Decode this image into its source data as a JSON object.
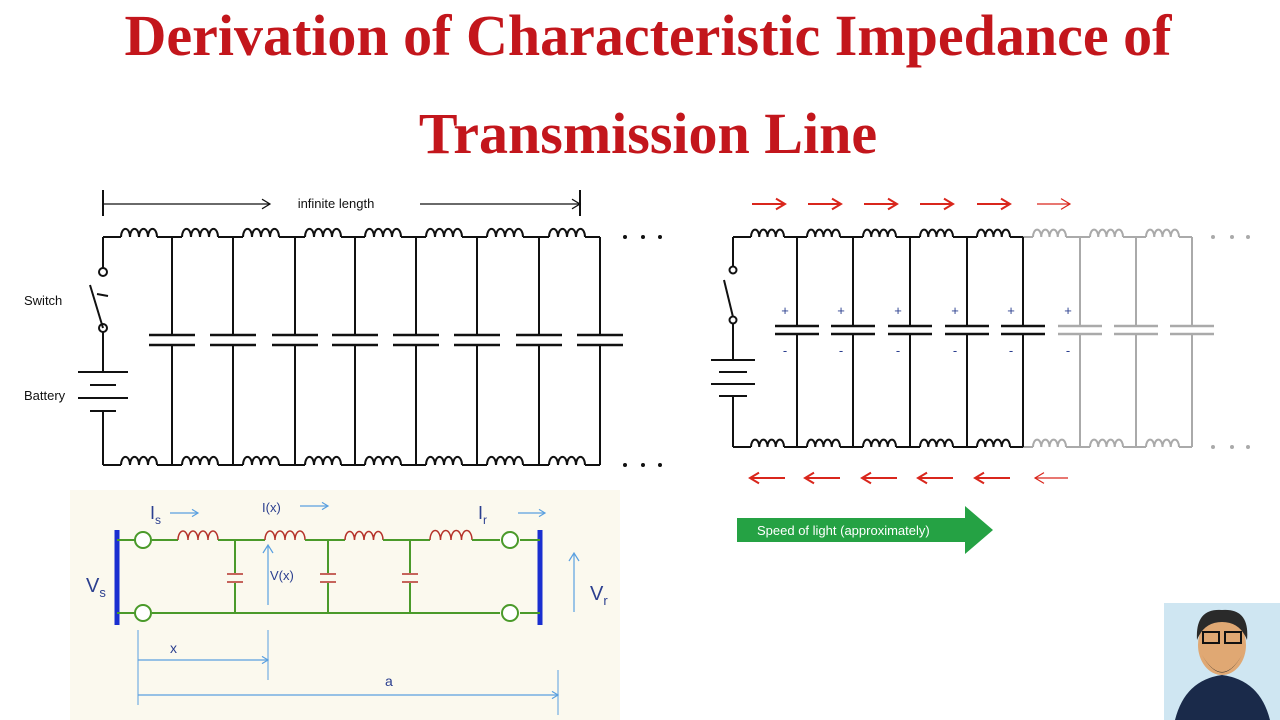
{
  "header": {
    "title_line1": "Derivation of Characteristic Impedance of",
    "title_line2": "Transmission Line"
  },
  "left_circuit": {
    "length_label": "infinite length",
    "switch_label": "Switch",
    "battery_label": "Battery"
  },
  "right_circuit": {
    "plus": "+",
    "minus": "-",
    "speed_label": "Speed of light (approximately)"
  },
  "bottom_circuit": {
    "is": {
      "main": "I",
      "sub": "s"
    },
    "ix": "I(x)",
    "ir": {
      "main": "I",
      "sub": "r"
    },
    "vs": {
      "main": "V",
      "sub": "s"
    },
    "vx": "V(x)",
    "vr": {
      "main": "V",
      "sub": "r"
    },
    "x": "x",
    "a": "a"
  }
}
